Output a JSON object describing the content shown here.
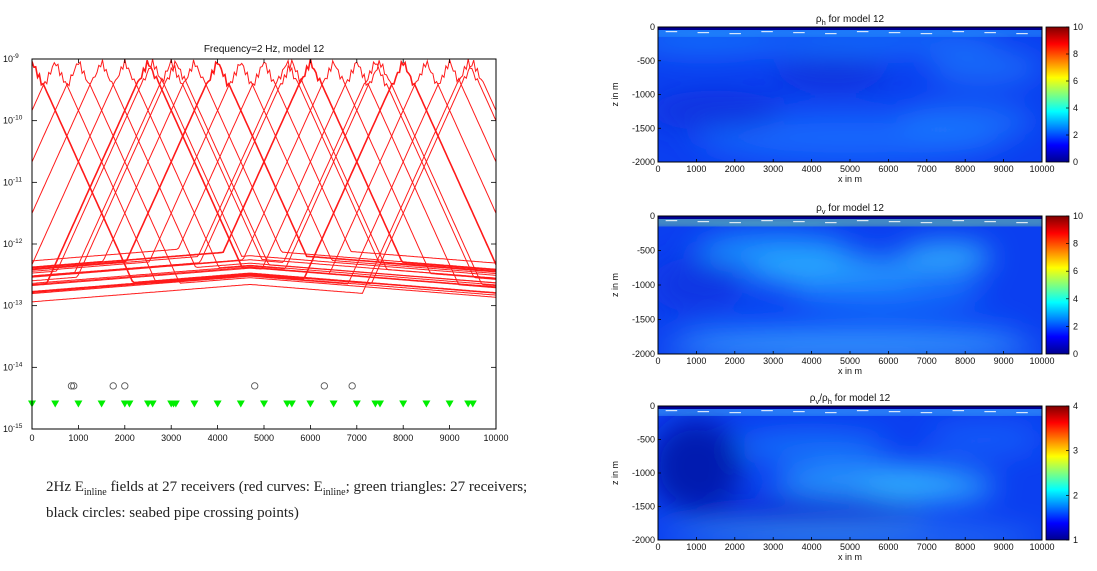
{
  "caption": {
    "p1": "2Hz E",
    "s1": "inline",
    "p2": " fields at 27 receivers (red curves: E",
    "s2": "inline",
    "p3": "; green triangles: 27 receivers; black circles: seabed pipe crossing points)"
  },
  "colors": {
    "curve": "#ff1a1a",
    "receiver": "#00ee00",
    "pipe": "#555555"
  },
  "chart_data": [
    {
      "type": "line",
      "title": "Frequency=2 Hz, model 12",
      "yscale": "log",
      "xlim": [
        0,
        10000
      ],
      "ylim": [
        1e-15,
        1e-09
      ],
      "xticks": [
        0,
        1000,
        2000,
        3000,
        4000,
        5000,
        6000,
        7000,
        8000,
        9000,
        10000
      ],
      "xtick_labels": [
        "0",
        "1000",
        "2000",
        "3000",
        "4000",
        "5000",
        "6000",
        "7000",
        "8000",
        "9000",
        "10000"
      ],
      "ytick_labels": [
        {
          "base": "10",
          "exp": "-9"
        },
        {
          "base": "10",
          "exp": "-10"
        },
        {
          "base": "10",
          "exp": "-11"
        },
        {
          "base": "10",
          "exp": "-12"
        },
        {
          "base": "10",
          "exp": "-13"
        },
        {
          "base": "10",
          "exp": "-14"
        },
        {
          "base": "10",
          "exp": "-15"
        }
      ],
      "receivers_x": [
        0,
        500,
        1000,
        1500,
        2000,
        2500,
        2600,
        3000,
        3100,
        3500,
        4000,
        4500,
        5000,
        5500,
        5600,
        6000,
        6500,
        7000,
        7400,
        7500,
        8000,
        8500,
        9000,
        9400,
        9500,
        2100,
        3050
      ],
      "receivers_y": 2.5e-15,
      "pipe_crossings_x": [
        850,
        900,
        1750,
        2000,
        4800,
        6300,
        6900
      ],
      "pipe_crossings_y": 5e-15,
      "series_description": "27 receiver curves: peak near 1e-09 at receiver, decaying about one decade per 600 m, flattening to an airwave floor of about 1e-12 to 6e-14"
    },
    {
      "type": "heatmap",
      "title": {
        "base": "ρ",
        "sub": "h",
        "suffix": " for model 12"
      },
      "xlabel": "x in m",
      "ylabel": "z in m",
      "xlim": [
        0,
        10000
      ],
      "ylim": [
        -2000,
        0
      ],
      "xtick_labels": [
        "0",
        "1000",
        "2000",
        "3000",
        "4000",
        "5000",
        "6000",
        "7000",
        "8000",
        "9000",
        "10000"
      ],
      "ytick_labels": [
        "0",
        "-500",
        "-1000",
        "-1500",
        "-2000"
      ],
      "colorbar_range": [
        0,
        10
      ],
      "colorbar_ticks": [
        "10",
        "8",
        "6",
        "4",
        "2",
        "0"
      ]
    },
    {
      "type": "heatmap",
      "title": {
        "base": "ρ",
        "sub": "v",
        "suffix": " for model 12"
      },
      "xlabel": "x in m",
      "ylabel": "z in m",
      "xlim": [
        0,
        10000
      ],
      "ylim": [
        -2000,
        0
      ],
      "xtick_labels": [
        "0",
        "1000",
        "2000",
        "3000",
        "4000",
        "5000",
        "6000",
        "7000",
        "8000",
        "9000",
        "10000"
      ],
      "ytick_labels": [
        "0",
        "-500",
        "-1000",
        "-1500",
        "-2000"
      ],
      "colorbar_range": [
        0,
        10
      ],
      "colorbar_ticks": [
        "10",
        "8",
        "6",
        "4",
        "2",
        "0"
      ]
    },
    {
      "type": "heatmap",
      "title": {
        "base": "ρ",
        "sub": "v",
        "mid": "/ρ",
        "sub2": "h",
        "suffix": " for model 12"
      },
      "xlabel": "x in m",
      "ylabel": "z in m",
      "xlim": [
        0,
        10000
      ],
      "ylim": [
        -2000,
        0
      ],
      "xtick_labels": [
        "0",
        "1000",
        "2000",
        "3000",
        "4000",
        "5000",
        "6000",
        "7000",
        "8000",
        "9000",
        "10000"
      ],
      "ytick_labels": [
        "0",
        "-500",
        "-1000",
        "-1500",
        "-2000"
      ],
      "colorbar_range": [
        1,
        4
      ],
      "colorbar_ticks": [
        "4",
        "3",
        "2",
        "1"
      ]
    }
  ]
}
